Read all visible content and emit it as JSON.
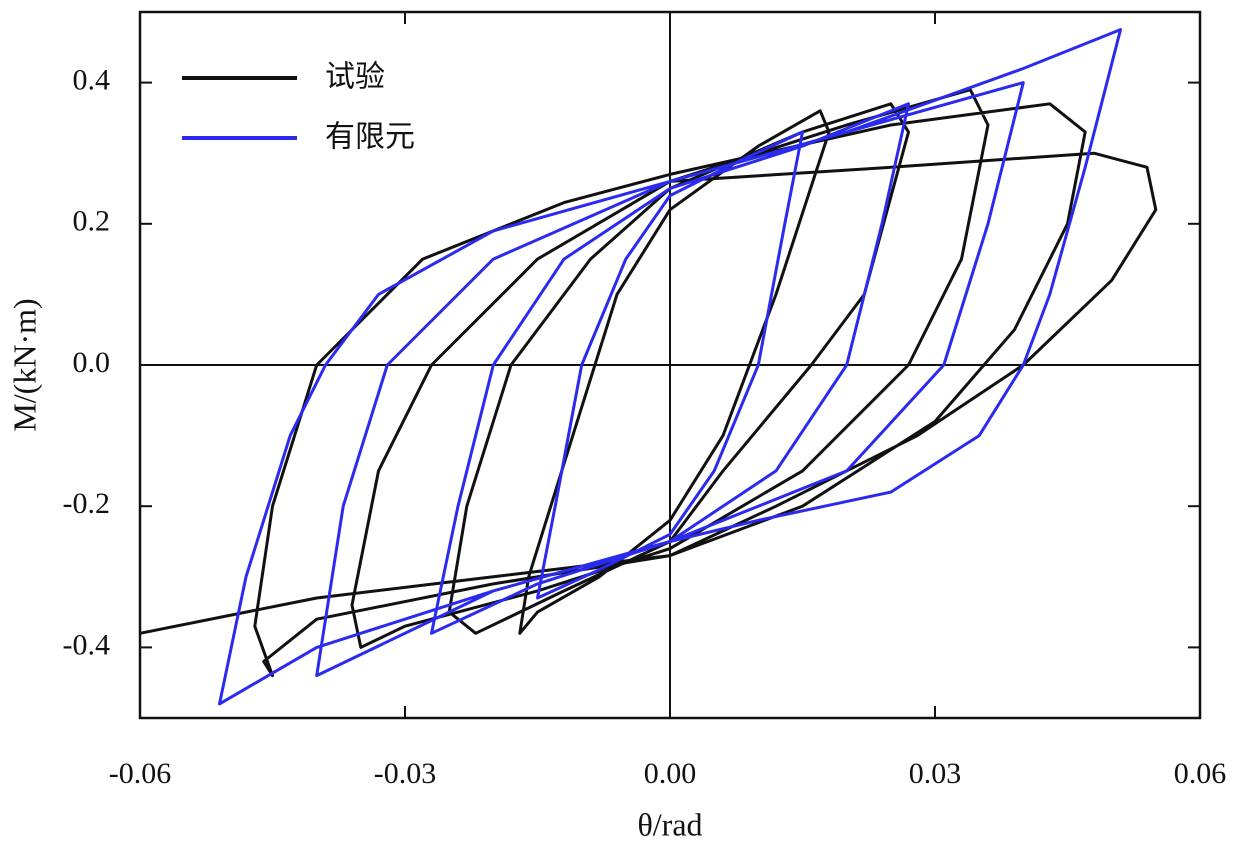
{
  "chart_data": {
    "type": "line",
    "x_label": "θ/rad",
    "y_label": "M/(kN·m)",
    "xlim": [
      -0.06,
      0.06
    ],
    "ylim": [
      -0.5,
      0.5
    ],
    "xticks": [
      -0.06,
      -0.03,
      {
        "value": 0,
        "label": "0.00"
      },
      0.03,
      0.06
    ],
    "yticks": [
      -0.4,
      -0.2,
      {
        "value": 0,
        "label": "0.0"
      },
      0.2,
      0.4
    ],
    "zero_lines": true,
    "legend": "upper left",
    "series": [
      {
        "name": "试验",
        "color": "#111111",
        "x": [
          0,
          0.01,
          0.017,
          0.018,
          0.012,
          0.006,
          0,
          -0.008,
          -0.015,
          -0.017,
          -0.016,
          -0.011,
          -0.006,
          0,
          null,
          0,
          0.015,
          0.025,
          0.027,
          0.022,
          0.016,
          0.006,
          0,
          -0.012,
          -0.022,
          -0.025,
          -0.023,
          -0.018,
          -0.009,
          0,
          null,
          0,
          0.02,
          0.034,
          0.036,
          0.033,
          0.027,
          0.015,
          0,
          -0.015,
          -0.03,
          -0.035,
          -0.036,
          -0.033,
          -0.027,
          -0.015,
          0,
          null,
          0,
          0.025,
          0.043,
          0.047,
          0.045,
          0.039,
          0.03,
          0.015,
          0,
          -0.02,
          -0.04,
          -0.046,
          -0.045,
          -0.047,
          -0.045,
          -0.04,
          -0.028,
          -0.012,
          0,
          null,
          0,
          0.025,
          0.048,
          0.054,
          0.055,
          0.05,
          0.04,
          0.028,
          0.012,
          0,
          -0.02,
          -0.04,
          -0.06
        ],
        "values": [
          0.22,
          0.31,
          0.36,
          0.33,
          0.1,
          -0.1,
          -0.22,
          -0.3,
          -0.35,
          -0.38,
          -0.3,
          -0.1,
          0.1,
          0.22,
          null,
          0.25,
          0.33,
          0.37,
          0.33,
          0.1,
          0,
          -0.15,
          -0.25,
          -0.32,
          -0.38,
          -0.35,
          -0.2,
          0,
          0.15,
          0.25,
          null,
          0.26,
          0.34,
          0.39,
          0.34,
          0.15,
          0,
          -0.15,
          -0.26,
          -0.32,
          -0.37,
          -0.4,
          -0.34,
          -0.15,
          0,
          0.15,
          0.26,
          null,
          0.27,
          0.34,
          0.37,
          0.33,
          0.2,
          0.05,
          -0.08,
          -0.2,
          -0.27,
          -0.31,
          -0.36,
          -0.42,
          -0.44,
          -0.37,
          -0.2,
          0,
          0.15,
          0.23,
          0.27,
          null,
          0.26,
          0.28,
          0.3,
          0.28,
          0.22,
          0.12,
          0,
          -0.1,
          -0.2,
          -0.27,
          -0.3,
          -0.33,
          -0.38
        ]
      },
      {
        "name": "有限元",
        "color": "#2b2bf0",
        "x": [
          0,
          0.008,
          0.015,
          0.013,
          0.01,
          0.005,
          0,
          -0.008,
          -0.015,
          -0.013,
          -0.01,
          -0.005,
          0,
          null,
          0,
          0.015,
          0.027,
          0.024,
          0.02,
          0.012,
          0,
          -0.015,
          -0.027,
          -0.024,
          -0.02,
          -0.012,
          0,
          null,
          0,
          0.02,
          0.04,
          0.036,
          0.031,
          0.02,
          0,
          -0.02,
          -0.04,
          -0.037,
          -0.032,
          -0.02,
          0,
          null,
          0,
          0.02,
          0.04,
          0.051,
          0.047,
          0.043,
          0.04,
          0.035,
          0.025,
          0.01,
          0,
          -0.02,
          -0.04,
          -0.051,
          -0.048,
          -0.043,
          -0.039,
          -0.033,
          -0.02,
          0
        ],
        "values": [
          0.24,
          0.29,
          0.33,
          0.2,
          0,
          -0.15,
          -0.24,
          -0.29,
          -0.33,
          -0.2,
          0,
          0.15,
          0.24,
          null,
          0.25,
          0.31,
          0.37,
          0.2,
          0,
          -0.15,
          -0.25,
          -0.31,
          -0.38,
          -0.2,
          0,
          0.15,
          0.25,
          null,
          0.26,
          0.33,
          0.4,
          0.2,
          0,
          -0.15,
          -0.25,
          -0.32,
          -0.44,
          -0.2,
          0,
          0.15,
          0.26,
          null,
          0.26,
          0.33,
          0.42,
          0.475,
          0.28,
          0.1,
          0,
          -0.1,
          -0.18,
          -0.22,
          -0.25,
          -0.32,
          -0.4,
          -0.48,
          -0.3,
          -0.1,
          0,
          0.1,
          0.19,
          0.26
        ]
      }
    ]
  }
}
